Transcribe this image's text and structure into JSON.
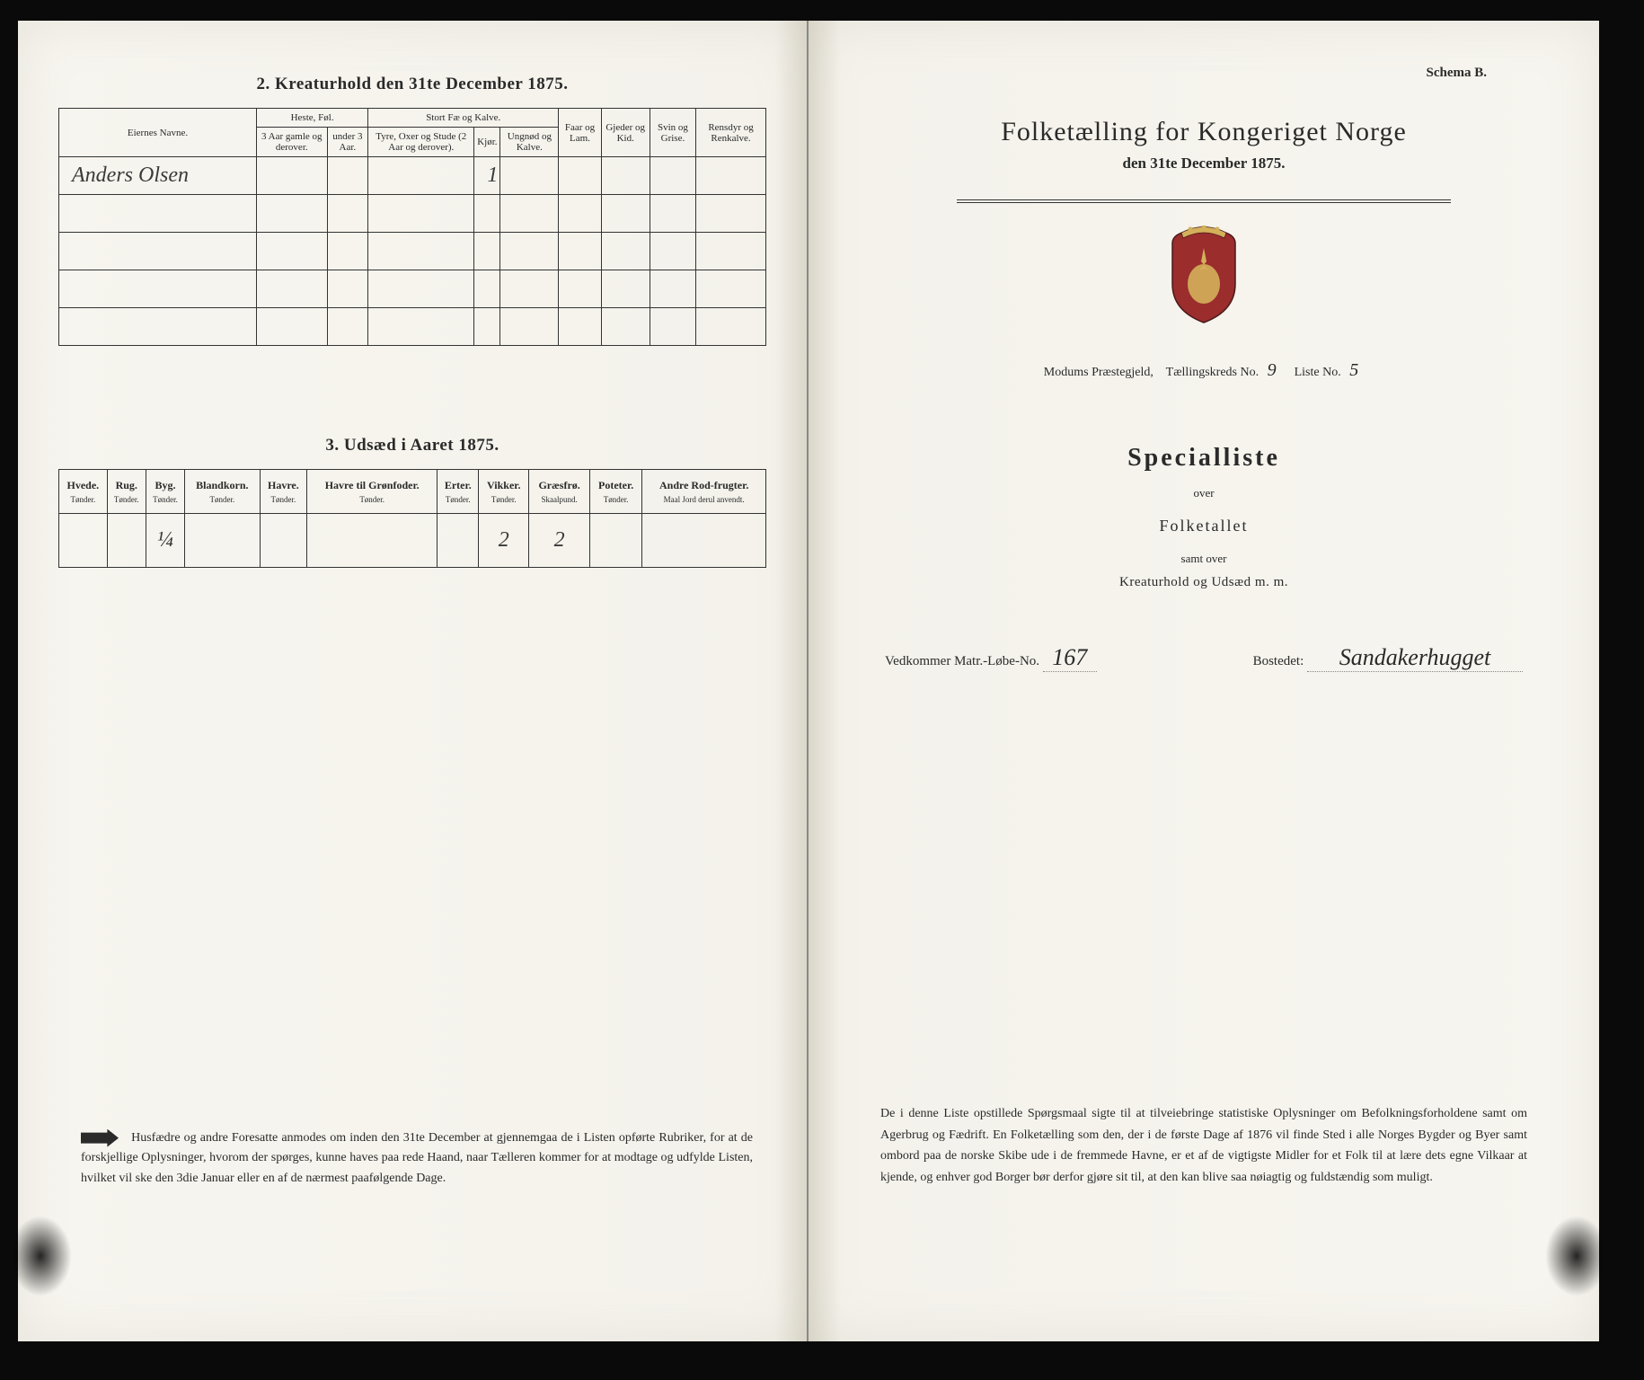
{
  "left": {
    "section2_title": "2. Kreaturhold den 31te December 1875.",
    "table2": {
      "headers": {
        "owner": "Eiernes Navne.",
        "group_heste": "Heste, Føl.",
        "heste_a": "3 Aar gamle og derover.",
        "heste_b": "under 3 Aar.",
        "group_stort": "Stort Fæ og Kalve.",
        "stort_a": "Tyre, Oxer og Stude (2 Aar og derover).",
        "stort_b": "Kjør.",
        "stort_c": "Ungnød og Kalve.",
        "faar": "Faar og Lam.",
        "gjeder": "Gjeder og Kid.",
        "svin": "Svin og Grise.",
        "rensdyr": "Rensdyr og Renkalve."
      },
      "row": {
        "owner": "Anders Olsen",
        "stort_b": "1"
      }
    },
    "section3_title": "3. Udsæd i Aaret 1875.",
    "table3": {
      "columns": [
        {
          "main": "Hvede.",
          "sub": "Tønder."
        },
        {
          "main": "Rug.",
          "sub": "Tønder."
        },
        {
          "main": "Byg.",
          "sub": "Tønder."
        },
        {
          "main": "Blandkorn.",
          "sub": "Tønder."
        },
        {
          "main": "Havre.",
          "sub": "Tønder."
        },
        {
          "main": "Havre til Grønfoder.",
          "sub": "Tønder."
        },
        {
          "main": "Erter.",
          "sub": "Tønder."
        },
        {
          "main": "Vikker.",
          "sub": "Tønder."
        },
        {
          "main": "Græsfrø.",
          "sub": "Skaalpund."
        },
        {
          "main": "Poteter.",
          "sub": "Tønder."
        },
        {
          "main": "Andre Rod-frugter.",
          "sub": "Maal Jord derul anvendt."
        }
      ],
      "values": [
        "",
        "",
        "¼",
        "",
        "",
        "",
        "",
        "2",
        "2",
        "",
        ""
      ]
    },
    "footer": "Husfædre og andre Foresatte anmodes om inden den 31te December at gjennemgaa de i Listen opførte Rubriker, for at de forskjellige Oplysninger, hvorom der spørges, kunne haves paa rede Haand, naar Tælleren kommer for at modtage og udfylde Listen, hvilket vil ske den 3die Januar eller en af de nærmest paafølgende Dage."
  },
  "right": {
    "schema": "Schema B.",
    "main_title": "Folketælling for Kongeriget Norge",
    "main_subtitle": "den 31te December 1875.",
    "meta": {
      "pre": "Modums Præstegjeld,",
      "kreds_label": "Tællingskreds No.",
      "kreds_val": "9",
      "liste_label": "Liste No.",
      "liste_val": "5"
    },
    "special_title": "Specialliste",
    "over": "over",
    "folketallet": "Folketallet",
    "samt_over": "samt over",
    "kreatur": "Kreaturhold og Udsæd m. m.",
    "vedkommer": {
      "label1": "Vedkommer Matr.-Løbe-No.",
      "val1": "167",
      "label2": "Bostedet:",
      "val2": "Sandakerhugget"
    },
    "footer": "De i denne Liste opstillede Spørgsmaal sigte til at tilveiebringe statistiske Oplysninger om Befolkningsforholdene samt om Agerbrug og Fædrift. En Folketælling som den, der i de første Dage af 1876 vil finde Sted i alle Norges Bygder og Byer samt ombord paa de norske Skibe ude i de fremmede Havne, er et af de vigtigste Midler for et Folk til at lære dets egne Vilkaar at kjende, og enhver god Borger bør derfor gjøre sit til, at den kan blive saa nøiagtig og fuldstændig som muligt."
  }
}
